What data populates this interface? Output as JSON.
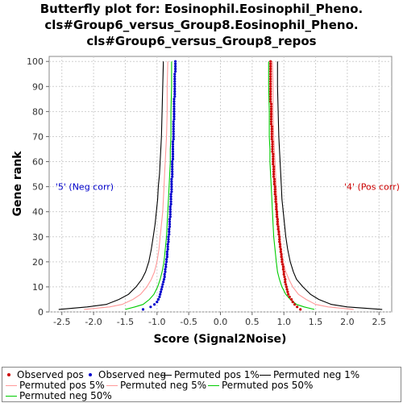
{
  "chart_data": {
    "type": "line",
    "title_lines": [
      "Butterfly plot for: Eosinophil.Eosinophil_Pheno.",
      "cls#Group6_versus_Group8.Eosinophil_Pheno.",
      "cls#Group6_versus_Group8_repos"
    ],
    "xlabel": "Score (Signal2Noise)",
    "ylabel": "Gene rank",
    "xlim": [
      -2.7,
      2.7
    ],
    "ylim": [
      0,
      102
    ],
    "xticks": [
      -2.5,
      -2.0,
      -1.5,
      -1.0,
      -0.5,
      0.0,
      0.5,
      1.0,
      1.5,
      2.0,
      2.5
    ],
    "xtick_labels": [
      "-2.5",
      "-2.0",
      "-1.5",
      "-1.0",
      "-0.5",
      "0.0",
      "0.5",
      "1.0",
      "1.5",
      "2.0",
      "2.5"
    ],
    "yticks": [
      0,
      10,
      20,
      30,
      40,
      50,
      60,
      70,
      80,
      90,
      100
    ],
    "ytick_labels": [
      "0",
      "10",
      "20",
      "30",
      "40",
      "50",
      "60",
      "70",
      "80",
      "90",
      "100"
    ],
    "grid": true,
    "legend_position": "bottom",
    "annotations": [
      {
        "text": "'5' (Neg corr)",
        "x": -2.6,
        "y": 50,
        "color": "#0000cc"
      },
      {
        "text": "'4' (Pos corr)",
        "x": 1.95,
        "y": 50,
        "color": "#cc0000"
      }
    ],
    "series": [
      {
        "name": "Observed pos",
        "kind": "points",
        "color": "#cc0000",
        "x": [
          1.26,
          1.21,
          1.17,
          1.14,
          1.12,
          1.09,
          1.07,
          1.06,
          1.05,
          1.04,
          1.03,
          1.02,
          1.02,
          1.01,
          1.0,
          1.0,
          0.99,
          0.99,
          0.98,
          0.97,
          0.97,
          0.96,
          0.96,
          0.95,
          0.95,
          0.94,
          0.94,
          0.93,
          0.93,
          0.93,
          0.92,
          0.92,
          0.91,
          0.91,
          0.9,
          0.9,
          0.9,
          0.89,
          0.89,
          0.89,
          0.88,
          0.88,
          0.88,
          0.87,
          0.87,
          0.87,
          0.86,
          0.86,
          0.86,
          0.86,
          0.85,
          0.85,
          0.85,
          0.84,
          0.84,
          0.84,
          0.84,
          0.84,
          0.83,
          0.83,
          0.83,
          0.83,
          0.83,
          0.82,
          0.82,
          0.82,
          0.82,
          0.82,
          0.81,
          0.81,
          0.81,
          0.81,
          0.81,
          0.81,
          0.8,
          0.8,
          0.8,
          0.8,
          0.8,
          0.8,
          0.8,
          0.8,
          0.8,
          0.79,
          0.79,
          0.79,
          0.79,
          0.79,
          0.79,
          0.79,
          0.79,
          0.79,
          0.79,
          0.79,
          0.79,
          0.79,
          0.79,
          0.79,
          0.79,
          0.79
        ],
        "y": [
          1,
          2,
          3,
          4,
          5,
          6,
          7,
          8,
          9,
          10,
          11,
          12,
          13,
          14,
          15,
          16,
          17,
          18,
          19,
          20,
          21,
          22,
          23,
          24,
          25,
          26,
          27,
          28,
          29,
          30,
          31,
          32,
          33,
          34,
          35,
          36,
          37,
          38,
          39,
          40,
          41,
          42,
          43,
          44,
          45,
          46,
          47,
          48,
          49,
          50,
          51,
          52,
          53,
          54,
          55,
          56,
          57,
          58,
          59,
          60,
          61,
          62,
          63,
          64,
          65,
          66,
          67,
          68,
          69,
          70,
          71,
          72,
          73,
          74,
          75,
          76,
          77,
          78,
          79,
          80,
          81,
          82,
          83,
          84,
          85,
          86,
          87,
          88,
          89,
          90,
          91,
          92,
          93,
          94,
          95,
          96,
          97,
          98,
          99,
          100
        ]
      },
      {
        "name": "Observed neg",
        "kind": "points",
        "color": "#0000cc",
        "x": [
          -1.22,
          -1.1,
          -1.04,
          -1.0,
          -0.98,
          -0.96,
          -0.95,
          -0.94,
          -0.93,
          -0.92,
          -0.91,
          -0.9,
          -0.89,
          -0.88,
          -0.88,
          -0.87,
          -0.87,
          -0.86,
          -0.86,
          -0.85,
          -0.85,
          -0.84,
          -0.84,
          -0.84,
          -0.83,
          -0.83,
          -0.83,
          -0.82,
          -0.82,
          -0.82,
          -0.81,
          -0.81,
          -0.81,
          -0.8,
          -0.8,
          -0.8,
          -0.8,
          -0.79,
          -0.79,
          -0.79,
          -0.79,
          -0.79,
          -0.78,
          -0.78,
          -0.78,
          -0.78,
          -0.78,
          -0.77,
          -0.77,
          -0.77,
          -0.77,
          -0.77,
          -0.77,
          -0.76,
          -0.76,
          -0.76,
          -0.76,
          -0.76,
          -0.76,
          -0.76,
          -0.75,
          -0.75,
          -0.75,
          -0.75,
          -0.75,
          -0.75,
          -0.75,
          -0.75,
          -0.74,
          -0.74,
          -0.74,
          -0.74,
          -0.74,
          -0.74,
          -0.74,
          -0.74,
          -0.73,
          -0.73,
          -0.73,
          -0.73,
          -0.73,
          -0.73,
          -0.73,
          -0.73,
          -0.73,
          -0.72,
          -0.72,
          -0.72,
          -0.72,
          -0.72,
          -0.72,
          -0.72,
          -0.72,
          -0.72,
          -0.72,
          -0.71,
          -0.71,
          -0.71,
          -0.71,
          -0.71
        ],
        "y": [
          1,
          2,
          3,
          4,
          5,
          6,
          7,
          8,
          9,
          10,
          11,
          12,
          13,
          14,
          15,
          16,
          17,
          18,
          19,
          20,
          21,
          22,
          23,
          24,
          25,
          26,
          27,
          28,
          29,
          30,
          31,
          32,
          33,
          34,
          35,
          36,
          37,
          38,
          39,
          40,
          41,
          42,
          43,
          44,
          45,
          46,
          47,
          48,
          49,
          50,
          51,
          52,
          53,
          54,
          55,
          56,
          57,
          58,
          59,
          60,
          61,
          62,
          63,
          64,
          65,
          66,
          67,
          68,
          69,
          70,
          71,
          72,
          73,
          74,
          75,
          76,
          77,
          78,
          79,
          80,
          81,
          82,
          83,
          84,
          85,
          86,
          87,
          88,
          89,
          90,
          91,
          92,
          93,
          94,
          95,
          96,
          97,
          98,
          99,
          100
        ]
      },
      {
        "name": "Permuted pos 1%",
        "kind": "line",
        "color": "#000000",
        "x": [
          2.55,
          2.0,
          1.75,
          1.55,
          1.42,
          1.3,
          1.2,
          1.15,
          1.1,
          1.06,
          1.03,
          1.01,
          0.99,
          0.97,
          0.96,
          0.95,
          0.94,
          0.93,
          0.92,
          0.91,
          0.9,
          0.9
        ],
        "y": [
          1,
          2,
          3,
          5,
          7,
          10,
          13,
          16,
          20,
          25,
          30,
          35,
          40,
          45,
          50,
          55,
          60,
          65,
          70,
          80,
          90,
          100
        ]
      },
      {
        "name": "Permuted neg 1%",
        "kind": "line",
        "color": "#000000",
        "x": [
          -2.55,
          -2.1,
          -1.8,
          -1.6,
          -1.45,
          -1.33,
          -1.24,
          -1.18,
          -1.13,
          -1.09,
          -1.06,
          -1.03,
          -1.01,
          -0.99,
          -0.98,
          -0.96,
          -0.95,
          -0.94,
          -0.93,
          -0.92,
          -0.91,
          -0.9
        ],
        "y": [
          1,
          2,
          3,
          5,
          7,
          10,
          13,
          16,
          20,
          25,
          30,
          35,
          40,
          45,
          50,
          55,
          60,
          65,
          70,
          80,
          90,
          100
        ]
      },
      {
        "name": "Permuted pos 5%",
        "kind": "line",
        "color": "#ff9999",
        "x": [
          2.1,
          1.7,
          1.5,
          1.35,
          1.23,
          1.14,
          1.08,
          1.03,
          0.99,
          0.96,
          0.94,
          0.92,
          0.9,
          0.89,
          0.88,
          0.87,
          0.86,
          0.85,
          0.84,
          0.83,
          0.83,
          0.82
        ],
        "y": [
          1,
          2,
          3,
          5,
          7,
          10,
          13,
          16,
          20,
          25,
          30,
          35,
          40,
          45,
          50,
          55,
          60,
          65,
          70,
          80,
          90,
          100
        ]
      },
      {
        "name": "Permuted neg 5%",
        "kind": "line",
        "color": "#ff9999",
        "x": [
          -2.15,
          -1.75,
          -1.55,
          -1.38,
          -1.26,
          -1.16,
          -1.09,
          -1.04,
          -1.0,
          -0.97,
          -0.95,
          -0.93,
          -0.91,
          -0.9,
          -0.89,
          -0.88,
          -0.87,
          -0.86,
          -0.85,
          -0.84,
          -0.84,
          -0.83
        ],
        "y": [
          1,
          2,
          3,
          5,
          7,
          10,
          13,
          16,
          20,
          25,
          30,
          35,
          40,
          45,
          50,
          55,
          60,
          65,
          70,
          80,
          90,
          100
        ]
      },
      {
        "name": "Permuted pos 50%",
        "kind": "line",
        "color": "#00cc00",
        "x": [
          1.48,
          1.32,
          1.2,
          1.1,
          1.03,
          0.97,
          0.93,
          0.9,
          0.88,
          0.86,
          0.84,
          0.83,
          0.82,
          0.81,
          0.8,
          0.79,
          0.78,
          0.78,
          0.77,
          0.77,
          0.76,
          0.76
        ],
        "y": [
          1,
          2,
          3,
          5,
          7,
          10,
          13,
          16,
          20,
          25,
          30,
          35,
          40,
          45,
          50,
          55,
          60,
          65,
          70,
          80,
          90,
          100
        ]
      },
      {
        "name": "Permuted neg 50%",
        "kind": "line",
        "color": "#00cc00",
        "x": [
          -1.5,
          -1.35,
          -1.22,
          -1.12,
          -1.05,
          -0.99,
          -0.95,
          -0.92,
          -0.89,
          -0.87,
          -0.85,
          -0.84,
          -0.83,
          -0.82,
          -0.81,
          -0.8,
          -0.79,
          -0.79,
          -0.78,
          -0.78,
          -0.77,
          -0.77
        ],
        "y": [
          1,
          2,
          3,
          5,
          7,
          10,
          13,
          16,
          20,
          25,
          30,
          35,
          40,
          45,
          50,
          55,
          60,
          65,
          70,
          80,
          90,
          100
        ]
      }
    ]
  },
  "legend": {
    "items": [
      {
        "label": "Observed pos",
        "color": "#cc0000",
        "swatch": "dot"
      },
      {
        "label": "Observed neg",
        "color": "#0000cc",
        "swatch": "dot"
      },
      {
        "label": "Permuted pos 1%",
        "color": "#000000",
        "swatch": "line"
      },
      {
        "label": "Permuted neg 1%",
        "color": "#000000",
        "swatch": "line"
      },
      {
        "label": "Permuted pos 5%",
        "color": "#ff9999",
        "swatch": "line"
      },
      {
        "label": "Permuted neg 5%",
        "color": "#ff9999",
        "swatch": "line"
      },
      {
        "label": "Permuted pos 50%",
        "color": "#00cc00",
        "swatch": "line"
      },
      {
        "label": "Permuted neg 50%",
        "color": "#00cc00",
        "swatch": "line"
      }
    ]
  }
}
